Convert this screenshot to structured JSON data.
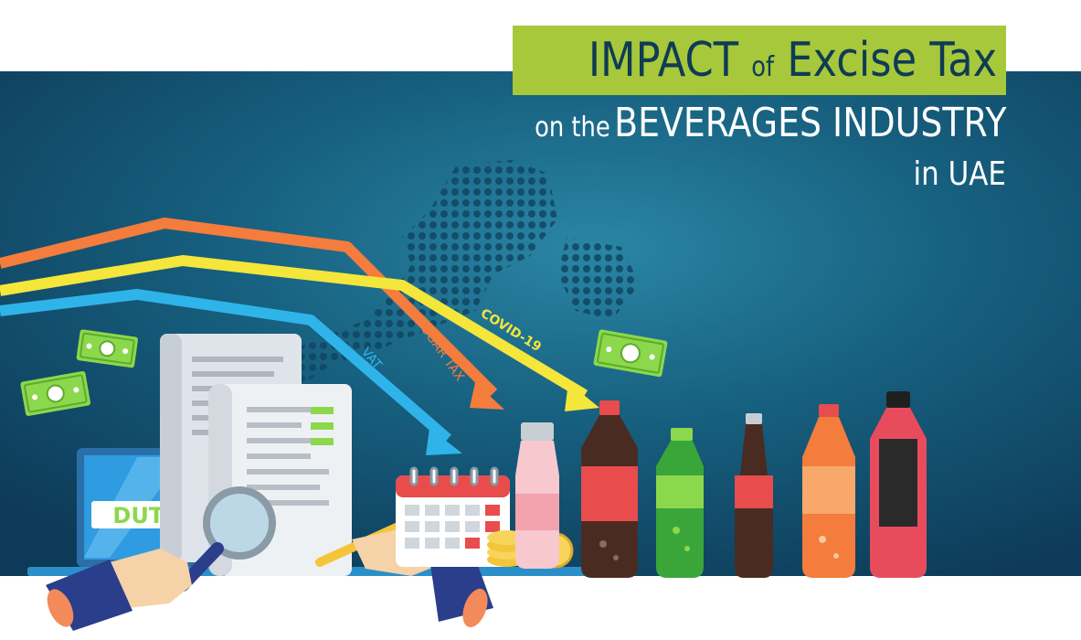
{
  "title": {
    "word_impact": "IMPACT",
    "word_of": "of",
    "word_excise": "Excise Tax",
    "word_on_the": "on the",
    "word_industry": "BEVERAGES INDUSTRY",
    "word_location": "in UAE"
  },
  "arrow_labels": {
    "vat": "VAT",
    "sugar_tax": "SUGAR TAX",
    "covid": "COVID-19"
  },
  "laptop_label": "DUTY",
  "colors": {
    "background_dark": "#0e3e5c",
    "background_mid": "#1a6b8a",
    "title_highlight": "#a6c83a",
    "title_text": "#0f3b55",
    "arrow_orange": "#f47c3c",
    "arrow_yellow": "#f4e63a",
    "arrow_blue": "#2fb4ea",
    "money_green": "#8cd84c"
  }
}
